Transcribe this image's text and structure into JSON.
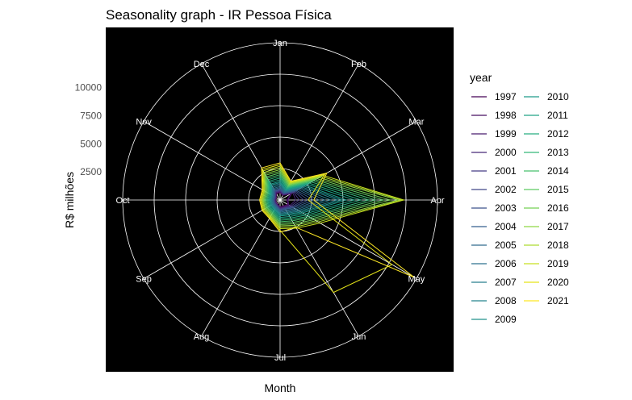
{
  "chart_data": {
    "type": "line",
    "coordinate_system": "polar",
    "title": "Seasonality graph - IR  Pessoa Física",
    "xlabel": "Month",
    "ylabel": "R$ milhões",
    "x": [
      "Jan",
      "Feb",
      "Mar",
      "Apr",
      "May",
      "Jun",
      "Jul",
      "Aug",
      "Sep",
      "Oct",
      "Nov",
      "Dec"
    ],
    "radial_ticks": [
      2500,
      5000,
      7500,
      10000
    ],
    "ylim": [
      0,
      14000
    ],
    "grid": true,
    "background": "#000000",
    "grid_color": "#ffffff",
    "legend": {
      "title": "year",
      "placement": "right",
      "columns": 2
    },
    "series": [
      {
        "name": "1997",
        "color": "#440154",
        "values": [
          650,
          480,
          1100,
          600,
          800,
          600,
          600,
          420,
          400,
          380,
          390,
          650
        ]
      },
      {
        "name": "1998",
        "color": "#470e61",
        "values": [
          700,
          500,
          1150,
          650,
          850,
          650,
          650,
          450,
          420,
          400,
          410,
          700
        ]
      },
      {
        "name": "1999",
        "color": "#481b6d",
        "values": [
          720,
          520,
          1200,
          700,
          900,
          700,
          680,
          470,
          440,
          420,
          430,
          720
        ]
      },
      {
        "name": "2000",
        "color": "#472878",
        "values": [
          780,
          560,
          1300,
          1400,
          1000,
          750,
          720,
          500,
          470,
          450,
          460,
          780
        ]
      },
      {
        "name": "2001",
        "color": "#443a83",
        "values": [
          830,
          600,
          1400,
          1700,
          1100,
          800,
          780,
          540,
          500,
          480,
          490,
          830
        ]
      },
      {
        "name": "2002",
        "color": "#404688",
        "values": [
          880,
          640,
          1500,
          2100,
          1200,
          850,
          830,
          580,
          540,
          520,
          530,
          880
        ]
      },
      {
        "name": "2003",
        "color": "#3b528b",
        "values": [
          940,
          680,
          1600,
          2500,
          1300,
          900,
          880,
          620,
          580,
          560,
          570,
          940
        ]
      },
      {
        "name": "2004",
        "color": "#355f8d",
        "values": [
          1000,
          720,
          1700,
          3000,
          1400,
          950,
          930,
          660,
          620,
          600,
          610,
          1000
        ]
      },
      {
        "name": "2005",
        "color": "#306a8e",
        "values": [
          1100,
          780,
          1850,
          3500,
          1550,
          1050,
          1000,
          720,
          670,
          650,
          660,
          1100
        ]
      },
      {
        "name": "2006",
        "color": "#2c728e",
        "values": [
          1200,
          840,
          2000,
          4000,
          1700,
          1150,
          1080,
          780,
          720,
          700,
          710,
          1200
        ]
      },
      {
        "name": "2007",
        "color": "#287d8e",
        "values": [
          1320,
          900,
          2150,
          4500,
          1850,
          1250,
          1160,
          840,
          780,
          760,
          770,
          1320
        ]
      },
      {
        "name": "2008",
        "color": "#25858e",
        "values": [
          1450,
          960,
          2300,
          5100,
          2000,
          1350,
          1250,
          900,
          840,
          820,
          830,
          1450
        ]
      },
      {
        "name": "2009",
        "color": "#21918c",
        "values": [
          1550,
          1020,
          2450,
          5500,
          2150,
          1450,
          1330,
          960,
          900,
          880,
          890,
          1550
        ]
      },
      {
        "name": "2010",
        "color": "#1e9b8a",
        "values": [
          1650,
          1080,
          2600,
          5900,
          2300,
          1550,
          1420,
          1020,
          960,
          940,
          950,
          1650
        ]
      },
      {
        "name": "2011",
        "color": "#20a486",
        "values": [
          1800,
          1150,
          2800,
          6600,
          2500,
          1700,
          1550,
          1100,
          1050,
          1020,
          1030,
          1800
        ]
      },
      {
        "name": "2012",
        "color": "#28ae80",
        "values": [
          1950,
          1220,
          3000,
          7200,
          2700,
          1850,
          1680,
          1180,
          1130,
          1100,
          1110,
          1950
        ]
      },
      {
        "name": "2013",
        "color": "#35b779",
        "values": [
          2100,
          1300,
          3200,
          7900,
          2900,
          2000,
          1800,
          1260,
          1210,
          1180,
          1190,
          2100
        ]
      },
      {
        "name": "2014",
        "color": "#48c16e",
        "values": [
          2250,
          1380,
          3400,
          8500,
          3100,
          2150,
          1930,
          1340,
          1290,
          1260,
          1270,
          2250
        ]
      },
      {
        "name": "2015",
        "color": "#5ec962",
        "values": [
          2400,
          1460,
          3600,
          9200,
          3300,
          2300,
          2050,
          1420,
          1370,
          1340,
          1350,
          2400
        ]
      },
      {
        "name": "2016",
        "color": "#75d054",
        "values": [
          2550,
          1540,
          3800,
          9800,
          3500,
          2450,
          2180,
          1500,
          1450,
          1420,
          1430,
          2550
        ]
      },
      {
        "name": "2017",
        "color": "#8fd744",
        "values": [
          2700,
          1620,
          4000,
          10500,
          3700,
          2600,
          2300,
          1580,
          1530,
          1500,
          1510,
          2700
        ]
      },
      {
        "name": "2018",
        "color": "#addc30",
        "values": [
          2850,
          1700,
          4200,
          10800,
          3900,
          2750,
          2430,
          1660,
          1610,
          1580,
          1590,
          2850
        ]
      },
      {
        "name": "2019",
        "color": "#c8e020",
        "values": [
          3000,
          1780,
          4400,
          11000,
          4100,
          2900,
          2550,
          1740,
          1690,
          1660,
          1670,
          3000
        ]
      },
      {
        "name": "2020",
        "color": "#e5e419",
        "values": [
          3150,
          1860,
          4600,
          2500,
          11500,
          9500,
          2700,
          1820,
          1770,
          1740,
          1750,
          3150
        ]
      },
      {
        "name": "2021",
        "color": "#fde725",
        "values": [
          3300,
          1940,
          4800,
          3000,
          13800,
          2800,
          2850,
          1900,
          1850,
          1820,
          1830,
          3300
        ]
      }
    ]
  }
}
